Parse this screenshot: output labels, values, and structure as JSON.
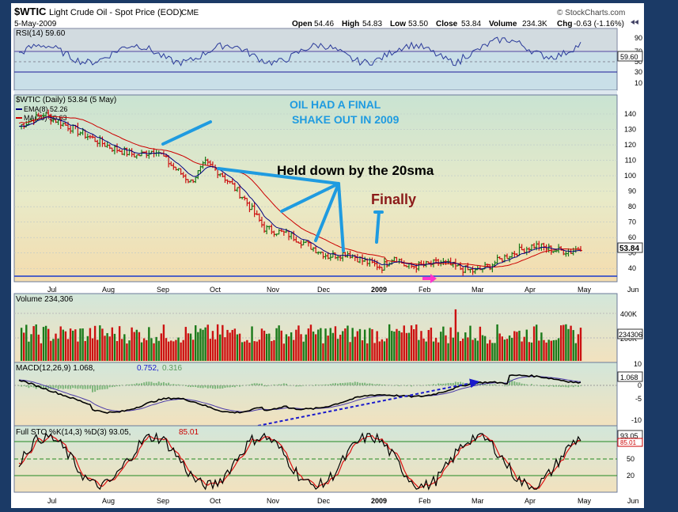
{
  "header": {
    "symbol": "$WTIC",
    "name": "Light Crude Oil - Spot Price (EOD)",
    "exchange": "CME",
    "date": "5-May-2009",
    "copyright": "© StockCharts.com",
    "open_label": "Open",
    "open": "54.46",
    "high_label": "High",
    "high": "54.83",
    "low_label": "Low",
    "low": "53.50",
    "close_label": "Close",
    "close": "53.84",
    "volume_label": "Volume",
    "volume": "234.3K",
    "chg_label": "Chg",
    "chg": "-0.63 (-1.16%)"
  },
  "rsi": {
    "label": "RSI(14) 59.60",
    "last": "59.60",
    "ticks": [
      "90",
      "70",
      "50",
      "30",
      "10"
    ]
  },
  "price": {
    "title": "$WTIC (Daily) 53.84 (5 May)",
    "ema_label": "EMA(8) 52.26",
    "ma_label": "MA(20) 50.63",
    "last": "53.84",
    "ticks": [
      "140",
      "130",
      "120",
      "110",
      "100",
      "90",
      "80",
      "70",
      "60",
      "50",
      "40"
    ]
  },
  "volume": {
    "label": "Volume 234,306",
    "last": "234306",
    "ticks": [
      "400K",
      "200K"
    ]
  },
  "macd": {
    "label": "MACD(12,26,9) 1.068, 0.752, 0.316",
    "prefix": "MACD(12,26,9) 1.068,",
    "signal": "0.752,",
    "hist": "0.316",
    "last": "1.068",
    "ticks": [
      "10",
      "5",
      "0",
      "-5",
      "-10"
    ]
  },
  "sto": {
    "label": "Full STO %K(14,3) %D(3) 93.05, 85.01",
    "prefix": "Full STO %K(14,3) %D(3) 93.05,",
    "d_value": "85.01",
    "last_k": "93.05",
    "last_d": "85.01",
    "ticks": [
      "80",
      "50",
      "20"
    ]
  },
  "months": [
    "Jul",
    "Aug",
    "Sep",
    "Oct",
    "Nov",
    "Dec",
    "2009",
    "Feb",
    "Mar",
    "Apr",
    "May",
    "Jun"
  ],
  "annotations": {
    "shakeout_line1": "OIL HAD A FINAL",
    "shakeout_line2": "SHAKE OUT IN 2009",
    "held_down": "Held down by the 20sma",
    "finally": "Finally"
  },
  "colors": {
    "up": "#1a7a1a",
    "down": "#cc1111",
    "ema": "#000080",
    "ma": "#cc0000",
    "annotation_blue": "#1f9be0",
    "annotation_red": "#8b1a1a",
    "arrow_dark_blue": "#1a1acc",
    "arrow_magenta": "#ff33cc"
  },
  "chart_data": {
    "type": "line",
    "title": "$WTIC (Daily) 53.84 (5 May)",
    "x": [
      "Jul",
      "Aug",
      "Sep",
      "Oct",
      "Nov",
      "Dec",
      "2009",
      "Feb",
      "Mar",
      "Apr",
      "May"
    ],
    "series": [
      {
        "name": "$WTIC",
        "values": [
          140,
          125,
          114,
          105,
          66,
          48,
          44,
          40,
          47,
          52,
          54
        ]
      },
      {
        "name": "EMA(8)",
        "values": [
          138,
          124,
          114,
          100,
          68,
          49,
          42,
          40,
          46,
          51,
          52.26
        ]
      },
      {
        "name": "MA(20)",
        "values": [
          136,
          127,
          117,
          103,
          73,
          55,
          44,
          42,
          44,
          49,
          50.63
        ]
      }
    ],
    "ylim": [
      34,
      150
    ],
    "ylabel": "",
    "xlabel": ""
  }
}
